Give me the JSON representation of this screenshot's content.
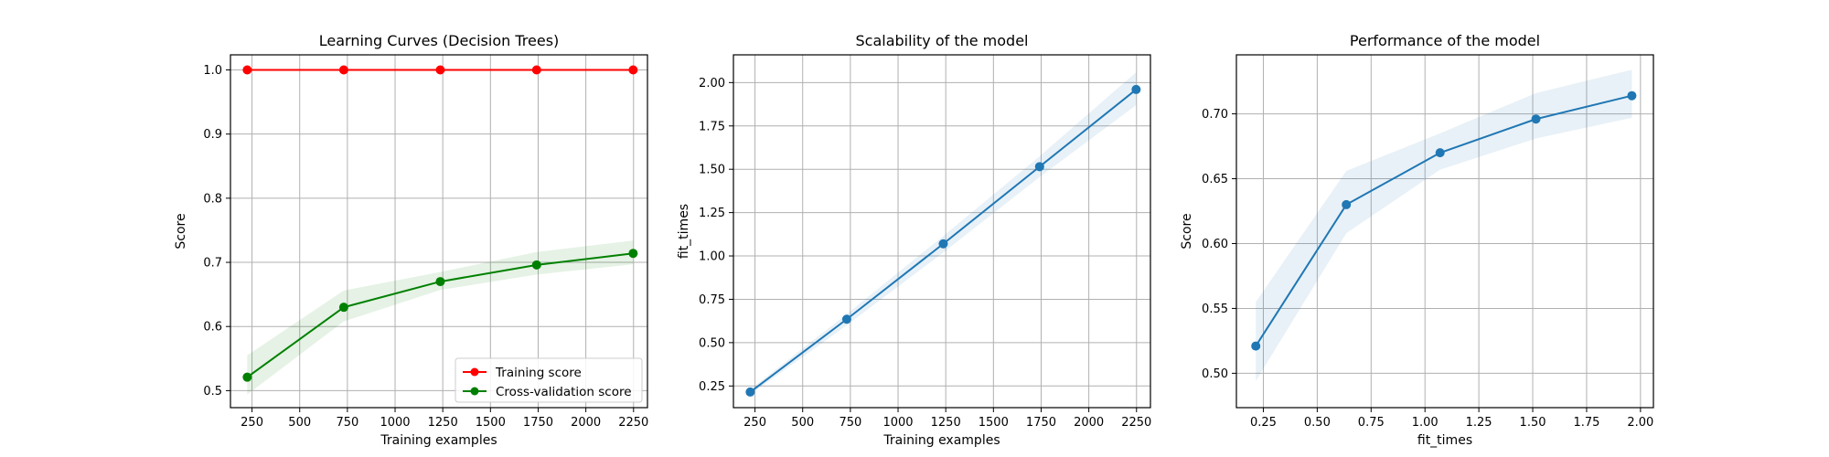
{
  "chart_data": [
    {
      "type": "line",
      "title": "Learning Curves (Decision Trees)",
      "xlabel": "Training examples",
      "ylabel": "Score",
      "xlim": [
        137,
        2323
      ],
      "ylim": [
        0.4735,
        1.0235
      ],
      "xticks": [
        250,
        500,
        750,
        1000,
        1250,
        1500,
        1750,
        2000,
        2250
      ],
      "xtick_labels": [
        "250",
        "500",
        "750",
        "1000",
        "1250",
        "1500",
        "1750",
        "2000",
        "2250"
      ],
      "yticks": [
        0.5,
        0.6,
        0.7,
        0.8,
        0.9,
        1.0
      ],
      "ytick_labels": [
        "0.5",
        "0.6",
        "0.7",
        "0.8",
        "0.9",
        "1.0"
      ],
      "grid": true,
      "legend": "lower-right",
      "x": [
        225,
        731,
        1237,
        1742,
        2248
      ],
      "series": [
        {
          "name": "Training score",
          "color": "#ff0000",
          "values": [
            1.0,
            1.0,
            1.0,
            1.0,
            1.0
          ],
          "band_lower": [
            1.0,
            1.0,
            1.0,
            1.0,
            1.0
          ],
          "band_upper": [
            1.0,
            1.0,
            1.0,
            1.0,
            1.0
          ]
        },
        {
          "name": "Cross-validation score",
          "color": "#008000",
          "values": [
            0.521,
            0.63,
            0.67,
            0.696,
            0.714
          ],
          "band_lower": [
            0.494,
            0.608,
            0.657,
            0.681,
            0.697
          ],
          "band_upper": [
            0.555,
            0.656,
            0.685,
            0.716,
            0.734
          ]
        }
      ]
    },
    {
      "type": "line",
      "title": "Scalability of the model",
      "xlabel": "Training examples",
      "ylabel": "fit_times",
      "xlim": [
        137,
        2323
      ],
      "ylim": [
        0.125,
        2.16
      ],
      "xticks": [
        250,
        500,
        750,
        1000,
        1250,
        1500,
        1750,
        2000,
        2250
      ],
      "xtick_labels": [
        "250",
        "500",
        "750",
        "1000",
        "1250",
        "1500",
        "1750",
        "2000",
        "2250"
      ],
      "yticks": [
        0.25,
        0.5,
        0.75,
        1.0,
        1.25,
        1.5,
        1.75,
        2.0
      ],
      "ytick_labels": [
        "0.25",
        "0.50",
        "0.75",
        "1.00",
        "1.25",
        "1.50",
        "1.75",
        "2.00"
      ],
      "grid": true,
      "x": [
        225,
        731,
        1237,
        1742,
        2248
      ],
      "series": [
        {
          "color": "#1f77b4",
          "values": [
            0.215,
            0.635,
            1.07,
            1.515,
            1.96
          ],
          "band_lower": [
            0.2,
            0.6,
            1.02,
            1.455,
            1.87
          ],
          "band_upper": [
            0.23,
            0.665,
            1.115,
            1.575,
            2.06
          ]
        }
      ]
    },
    {
      "type": "line",
      "title": "Performance of the model",
      "xlabel": "fit_times",
      "ylabel": "Score",
      "xlim": [
        0.125,
        2.06
      ],
      "ylim": [
        0.4735,
        0.7455
      ],
      "xticks": [
        0.25,
        0.5,
        0.75,
        1.0,
        1.25,
        1.5,
        1.75,
        2.0
      ],
      "xtick_labels": [
        "0.25",
        "0.50",
        "0.75",
        "1.00",
        "1.25",
        "1.50",
        "1.75",
        "2.00"
      ],
      "yticks": [
        0.5,
        0.55,
        0.6,
        0.65,
        0.7
      ],
      "ytick_labels": [
        "0.50",
        "0.55",
        "0.60",
        "0.65",
        "0.70"
      ],
      "grid": true,
      "x": [
        0.215,
        0.635,
        1.07,
        1.515,
        1.96
      ],
      "series": [
        {
          "color": "#1f77b4",
          "values": [
            0.521,
            0.63,
            0.67,
            0.696,
            0.714
          ],
          "band_lower": [
            0.494,
            0.608,
            0.657,
            0.681,
            0.697
          ],
          "band_upper": [
            0.555,
            0.656,
            0.685,
            0.716,
            0.734
          ]
        }
      ]
    }
  ]
}
